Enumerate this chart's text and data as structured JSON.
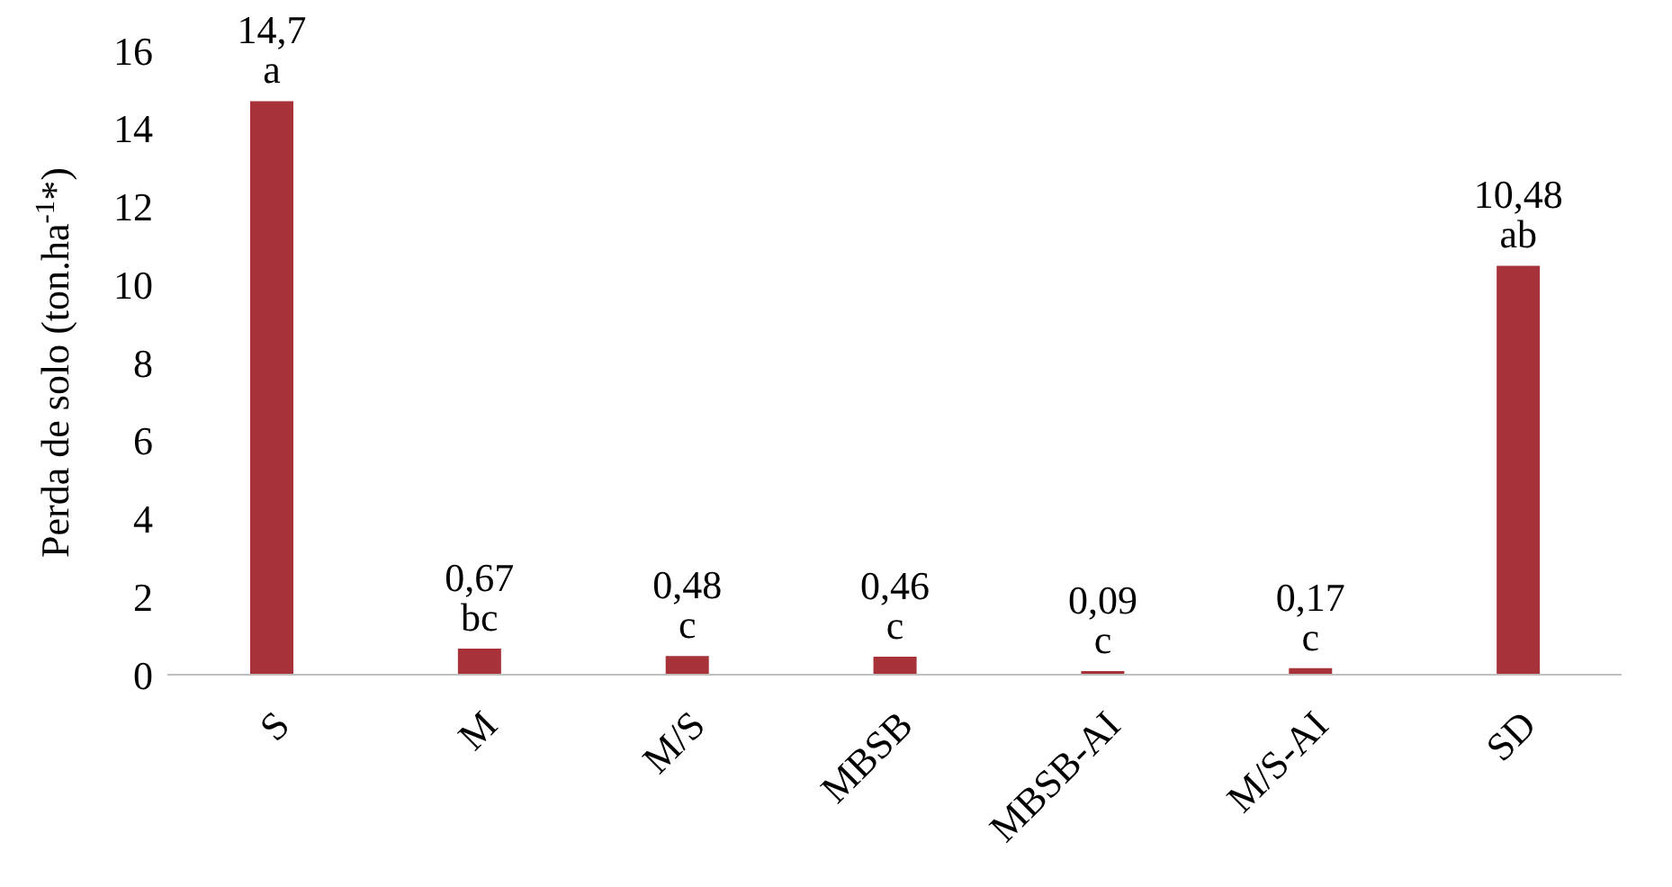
{
  "chart_data": {
    "type": "bar",
    "ylabel": "Perda de solo (ton.ha$^{-1}$*)",
    "categories": [
      "S",
      "M",
      "M/S",
      "MBSB",
      "MBSB-AI",
      "M/S-AI",
      "SD"
    ],
    "values": [
      14.7,
      0.67,
      0.48,
      0.46,
      0.09,
      0.17,
      10.48
    ],
    "value_labels": [
      "14,7 a",
      "0,67 bc",
      "0,48 c",
      "0,46 c",
      "0,09 c",
      "0,17 c",
      "10,48 ab"
    ],
    "color": "#a8323a",
    "ylim": [
      0,
      16
    ],
    "yticks": [
      0,
      2,
      4,
      6,
      8,
      10,
      12,
      14,
      16
    ],
    "grid": false
  }
}
